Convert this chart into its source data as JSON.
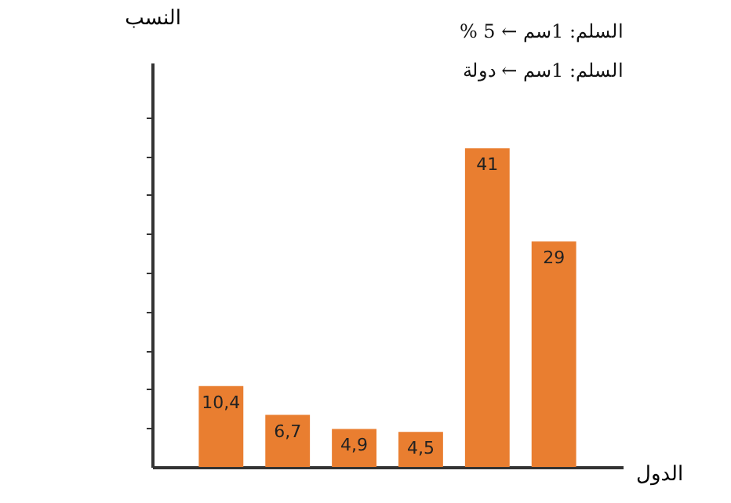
{
  "chart_data": {
    "type": "bar",
    "xlabel": "الدول",
    "ylabel": "النسب",
    "categories": [
      null,
      null,
      null,
      null,
      null,
      null
    ],
    "values": [
      10.4,
      6.7,
      4.9,
      4.5,
      41,
      29
    ],
    "value_labels": [
      "10,4",
      "6,7",
      "4,9",
      "4,5",
      "41",
      "29"
    ],
    "color": "#e97e30",
    "ylim": [
      0,
      52
    ],
    "yticks": [
      {
        "value": 5,
        "label": null
      },
      {
        "value": 10,
        "label": null
      },
      {
        "value": 15,
        "label": null
      },
      {
        "value": 20,
        "label": null
      },
      {
        "value": 25,
        "label": null
      },
      {
        "value": 30,
        "label": null
      },
      {
        "value": 35,
        "label": null
      },
      {
        "value": 40,
        "label": null
      },
      {
        "value": 45,
        "label": null
      }
    ],
    "grid": false,
    "annotations": [
      "السلم: 1سم ← 5 %",
      "السلم: 1سم ← دولة"
    ]
  }
}
